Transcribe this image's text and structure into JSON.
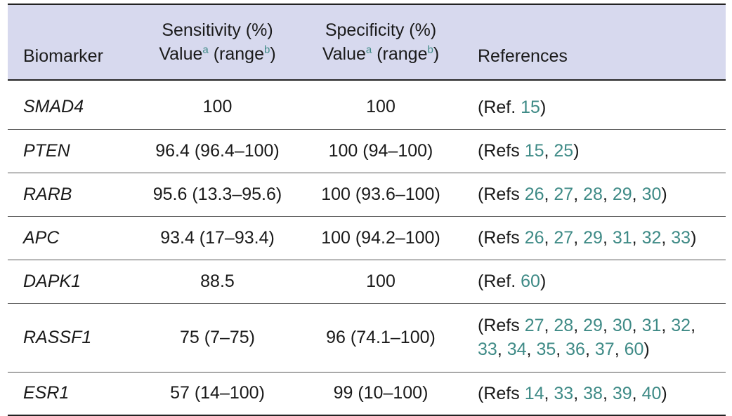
{
  "header": {
    "biomarker": "Biomarker",
    "sens_line1": "Sensitivity (%)",
    "spec_line1": "Specificity (%)",
    "value": "Value",
    "range_open": "(range",
    "range_close": ")",
    "sup_a": "a",
    "sup_b": "b",
    "references": "References"
  },
  "rows": [
    {
      "name": "SMAD4",
      "sensitivity": "100",
      "specificity": "100",
      "ref_prefix": "(Ref.",
      "refs": [
        "15"
      ]
    },
    {
      "name": "PTEN",
      "sensitivity": "96.4 (96.4–100)",
      "specificity": "100 (94–100)",
      "ref_prefix": "(Refs",
      "refs": [
        "15",
        "25"
      ]
    },
    {
      "name": "RARB",
      "sensitivity": "95.6 (13.3–95.6)",
      "specificity": "100 (93.6–100)",
      "ref_prefix": "(Refs",
      "refs": [
        "26",
        "27",
        "28",
        "29",
        "30"
      ]
    },
    {
      "name": "APC",
      "sensitivity": "93.4 (17–93.4)",
      "specificity": "100 (94.2–100)",
      "ref_prefix": "(Refs",
      "refs": [
        "26",
        "27",
        "29",
        "31",
        "32",
        "33"
      ]
    },
    {
      "name": "DAPK1",
      "sensitivity": "88.5",
      "specificity": "100",
      "ref_prefix": "(Ref.",
      "refs": [
        "60"
      ]
    },
    {
      "name": "RASSF1",
      "sensitivity": "75 (7–75)",
      "specificity": "96 (74.1–100)",
      "ref_prefix": "(Refs",
      "refs": [
        "27",
        "28",
        "29",
        "30",
        "31",
        "32",
        "33",
        "34",
        "35",
        "36",
        "37",
        "60"
      ]
    },
    {
      "name": "ESR1",
      "sensitivity": "57 (14–100)",
      "specificity": "99 (10–100)",
      "ref_prefix": "(Refs",
      "refs": [
        "14",
        "33",
        "38",
        "39",
        "40"
      ]
    }
  ]
}
